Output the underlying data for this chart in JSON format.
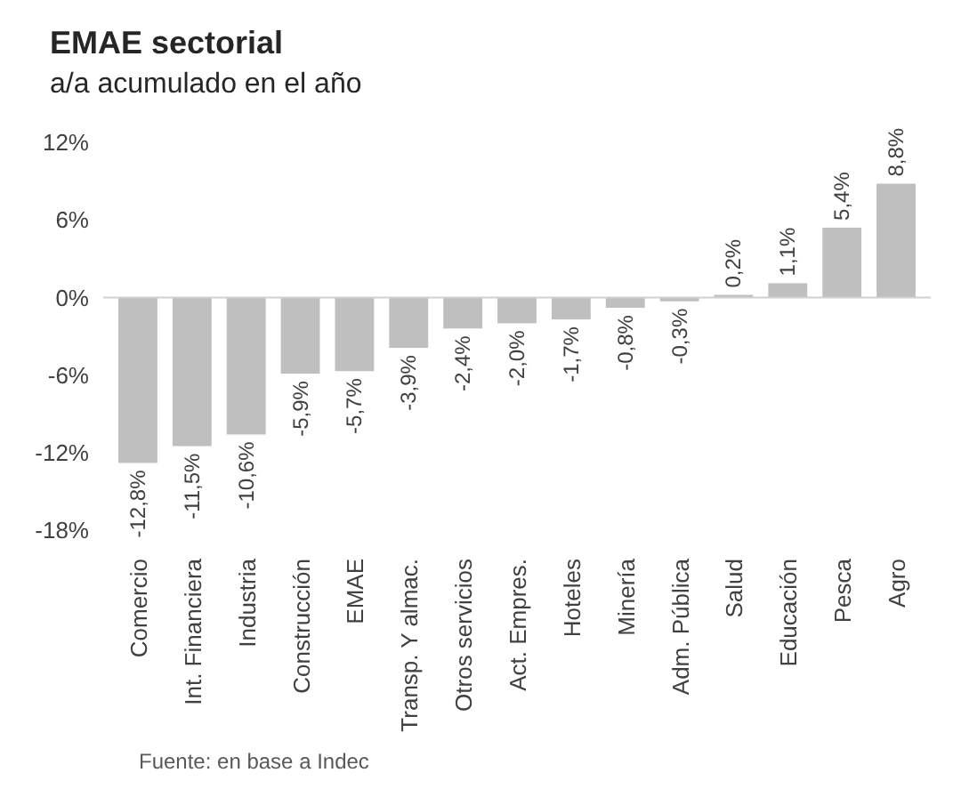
{
  "chart_data": {
    "type": "bar",
    "title": "EMAE sectorial",
    "subtitle": "a/a acumulado en el año",
    "categories": [
      "Comercio",
      "Int. Financiera",
      "Industria",
      "Construcción",
      "EMAE",
      "Transp. Y almac.",
      "Otros servicios",
      "Act. Empres.",
      "Hoteles",
      "Minería",
      "Adm. Pública",
      "Salud",
      "Educación",
      "Pesca",
      "Agro"
    ],
    "values": [
      -12.8,
      -11.5,
      -10.6,
      -5.9,
      -5.7,
      -3.9,
      -2.4,
      -2.0,
      -1.7,
      -0.8,
      -0.3,
      0.2,
      1.1,
      5.4,
      8.8
    ],
    "value_labels": [
      "-12,8%",
      "-11,5%",
      "-10,6%",
      "-5,9%",
      "-5,7%",
      "-3,9%",
      "-2,4%",
      "-2,0%",
      "-1,7%",
      "-0,8%",
      "-0,3%",
      "0,2%",
      "1,1%",
      "5,4%",
      "8,8%"
    ],
    "color": "#bfbfbf",
    "ylim": [
      -18,
      12
    ],
    "yticks": [
      {
        "value": -18,
        "label": "-18%"
      },
      {
        "value": -12,
        "label": "-12%"
      },
      {
        "value": -6,
        "label": "-6%"
      },
      {
        "value": 0,
        "label": "0%"
      },
      {
        "value": 6,
        "label": "6%"
      },
      {
        "value": 12,
        "label": "12%"
      }
    ],
    "annotations": [
      "Fuente: en base a Indec"
    ]
  }
}
